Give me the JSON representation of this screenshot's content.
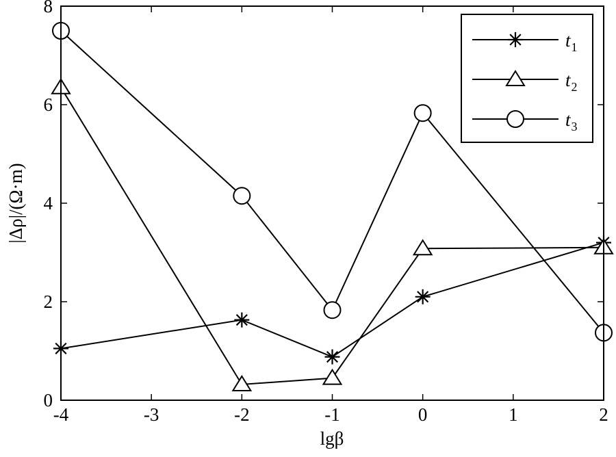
{
  "chart_data": {
    "type": "line",
    "xlabel": "lgβ",
    "ylabel": "|Δρ|/(Ω·m)",
    "xlim": [
      -4,
      2
    ],
    "ylim": [
      0,
      8
    ],
    "xticks": [
      -4,
      -3,
      -2,
      -1,
      0,
      1,
      2
    ],
    "yticks": [
      0,
      2,
      4,
      6,
      8
    ],
    "xtick_labels": [
      "-4",
      "-3",
      "-2",
      "-1",
      "0",
      "1",
      "2"
    ],
    "ytick_labels": [
      "0",
      "2",
      "4",
      "6",
      "8"
    ],
    "grid": false,
    "legend_position": "top-right",
    "series": [
      {
        "name": "t1",
        "name_main": "t",
        "name_sub": "1",
        "marker": "asterisk",
        "x": [
          -4,
          -2,
          -1,
          0,
          2
        ],
        "y": [
          1.05,
          1.63,
          0.88,
          2.1,
          3.2
        ]
      },
      {
        "name": "t2",
        "name_main": "t",
        "name_sub": "2",
        "marker": "triangle",
        "x": [
          -4,
          -2,
          -1,
          0,
          2
        ],
        "y": [
          6.35,
          0.32,
          0.45,
          3.08,
          3.1
        ]
      },
      {
        "name": "t3",
        "name_main": "t",
        "name_sub": "3",
        "marker": "circle",
        "x": [
          -4,
          -2,
          -1,
          0,
          2
        ],
        "y": [
          7.5,
          4.15,
          1.83,
          5.83,
          1.37
        ]
      }
    ],
    "colors": {
      "line": "#000000",
      "background": "#ffffff"
    }
  }
}
